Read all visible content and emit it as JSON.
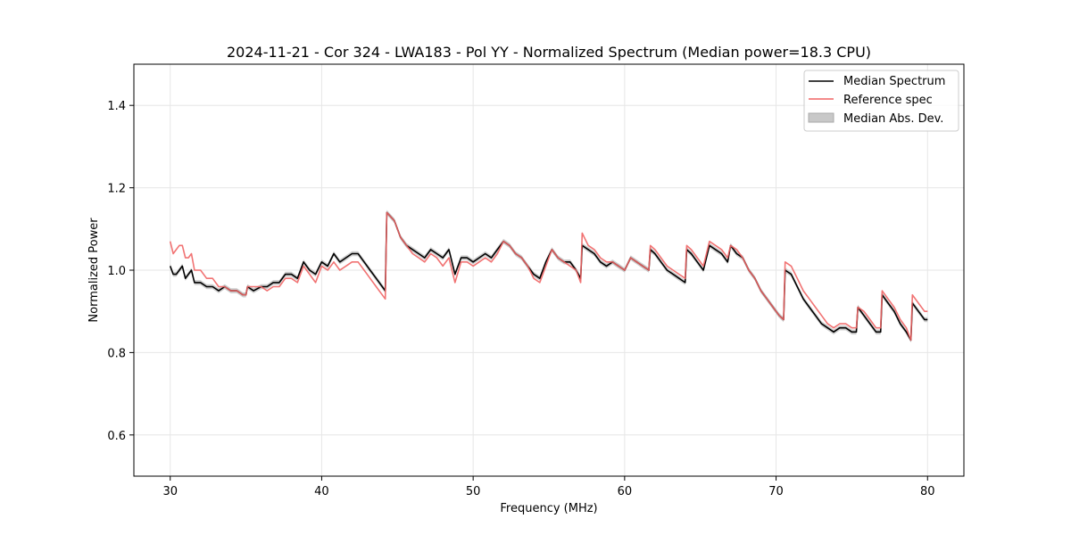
{
  "chart_data": {
    "type": "line",
    "title": "2024-11-21 - Cor 324 - LWA183 - Pol YY - Normalized Spectrum (Median power=18.3 CPU)",
    "xlabel": "Frequency (MHz)",
    "ylabel": "Normalized Power",
    "xlim": [
      27.6,
      82.4
    ],
    "ylim": [
      0.5,
      1.5
    ],
    "xticks": [
      30,
      40,
      50,
      60,
      70,
      80
    ],
    "yticks": [
      0.6,
      0.8,
      1.0,
      1.2,
      1.4
    ],
    "xtick_labels": [
      "30",
      "40",
      "50",
      "60",
      "70",
      "80"
    ],
    "ytick_labels": [
      "0.6",
      "0.8",
      "1.0",
      "1.2",
      "1.4"
    ],
    "grid": true,
    "legend_position": "top-right",
    "series": [
      {
        "name": "Median Spectrum",
        "color": "#000000",
        "x": [
          30.0,
          30.2,
          30.4,
          30.6,
          30.8,
          31.0,
          31.2,
          31.4,
          31.6,
          32.0,
          32.4,
          32.8,
          33.2,
          33.6,
          34.0,
          34.4,
          34.8,
          35.0,
          35.1,
          35.5,
          36.0,
          36.4,
          36.8,
          37.2,
          37.6,
          38.0,
          38.4,
          38.8,
          39.2,
          39.6,
          40.0,
          40.4,
          40.8,
          41.2,
          41.6,
          42.0,
          42.4,
          42.8,
          43.2,
          43.6,
          44.0,
          44.2,
          44.3,
          44.8,
          45.2,
          45.6,
          46.0,
          46.4,
          46.8,
          47.2,
          47.6,
          48.0,
          48.4,
          48.8,
          49.2,
          49.6,
          50.0,
          50.4,
          50.8,
          51.2,
          51.6,
          52.0,
          52.4,
          52.8,
          53.2,
          53.6,
          54.0,
          54.4,
          54.8,
          55.2,
          55.6,
          56.0,
          56.4,
          56.8,
          57.1,
          57.2,
          57.6,
          58.0,
          58.4,
          58.8,
          59.2,
          59.6,
          60.0,
          60.4,
          60.8,
          61.2,
          61.6,
          61.7,
          62.0,
          62.4,
          62.8,
          63.2,
          63.6,
          64.0,
          64.1,
          64.4,
          64.8,
          65.2,
          65.6,
          66.0,
          66.4,
          66.8,
          67.0,
          67.4,
          67.8,
          68.2,
          68.6,
          69.0,
          69.4,
          69.8,
          70.2,
          70.5,
          70.6,
          71.0,
          71.4,
          71.8,
          72.2,
          72.6,
          73.0,
          73.4,
          73.8,
          74.2,
          74.6,
          75.0,
          75.3,
          75.4,
          75.8,
          76.2,
          76.6,
          76.9,
          77.0,
          77.4,
          77.8,
          78.2,
          78.6,
          78.9,
          79.0,
          79.4,
          79.8,
          80.0
        ],
        "values": [
          1.01,
          0.99,
          0.99,
          1.0,
          1.01,
          0.98,
          0.99,
          1.0,
          0.97,
          0.97,
          0.96,
          0.96,
          0.95,
          0.96,
          0.95,
          0.95,
          0.94,
          0.94,
          0.96,
          0.95,
          0.96,
          0.96,
          0.97,
          0.97,
          0.99,
          0.99,
          0.98,
          1.02,
          1.0,
          0.99,
          1.02,
          1.01,
          1.04,
          1.02,
          1.03,
          1.04,
          1.04,
          1.02,
          1.0,
          0.98,
          0.96,
          0.95,
          1.14,
          1.12,
          1.08,
          1.06,
          1.05,
          1.04,
          1.03,
          1.05,
          1.04,
          1.03,
          1.05,
          0.99,
          1.03,
          1.03,
          1.02,
          1.03,
          1.04,
          1.03,
          1.05,
          1.07,
          1.06,
          1.04,
          1.03,
          1.01,
          0.99,
          0.98,
          1.02,
          1.05,
          1.03,
          1.02,
          1.02,
          1.0,
          0.98,
          1.06,
          1.05,
          1.04,
          1.02,
          1.01,
          1.02,
          1.01,
          1.0,
          1.03,
          1.02,
          1.01,
          1.0,
          1.05,
          1.04,
          1.02,
          1.0,
          0.99,
          0.98,
          0.97,
          1.05,
          1.04,
          1.02,
          1.0,
          1.06,
          1.05,
          1.04,
          1.02,
          1.06,
          1.04,
          1.03,
          1.0,
          0.98,
          0.95,
          0.93,
          0.91,
          0.89,
          0.88,
          1.0,
          0.99,
          0.96,
          0.93,
          0.91,
          0.89,
          0.87,
          0.86,
          0.85,
          0.86,
          0.86,
          0.85,
          0.85,
          0.91,
          0.89,
          0.87,
          0.85,
          0.85,
          0.94,
          0.92,
          0.9,
          0.87,
          0.85,
          0.83,
          0.92,
          0.9,
          0.88,
          0.88
        ]
      },
      {
        "name": "Reference spec",
        "color": "#f06464",
        "x": [
          30.0,
          30.2,
          30.4,
          30.6,
          30.8,
          31.0,
          31.2,
          31.4,
          31.6,
          32.0,
          32.4,
          32.8,
          33.2,
          33.6,
          34.0,
          34.4,
          34.8,
          35.0,
          35.1,
          35.5,
          36.0,
          36.4,
          36.8,
          37.2,
          37.6,
          38.0,
          38.4,
          38.8,
          39.2,
          39.6,
          40.0,
          40.4,
          40.8,
          41.2,
          41.6,
          42.0,
          42.4,
          42.8,
          43.2,
          43.6,
          44.0,
          44.2,
          44.3,
          44.8,
          45.2,
          45.6,
          46.0,
          46.4,
          46.8,
          47.2,
          47.6,
          48.0,
          48.4,
          48.8,
          49.2,
          49.6,
          50.0,
          50.4,
          50.8,
          51.2,
          51.6,
          52.0,
          52.4,
          52.8,
          53.2,
          53.6,
          54.0,
          54.4,
          54.8,
          55.2,
          55.6,
          56.0,
          56.4,
          56.8,
          57.1,
          57.2,
          57.6,
          58.0,
          58.4,
          58.8,
          59.2,
          59.6,
          60.0,
          60.4,
          60.8,
          61.2,
          61.6,
          61.7,
          62.0,
          62.4,
          62.8,
          63.2,
          63.6,
          64.0,
          64.1,
          64.4,
          64.8,
          65.2,
          65.6,
          66.0,
          66.4,
          66.8,
          67.0,
          67.4,
          67.8,
          68.2,
          68.6,
          69.0,
          69.4,
          69.8,
          70.2,
          70.5,
          70.6,
          71.0,
          71.4,
          71.8,
          72.2,
          72.6,
          73.0,
          73.4,
          73.8,
          74.2,
          74.6,
          75.0,
          75.3,
          75.4,
          75.8,
          76.2,
          76.6,
          76.9,
          77.0,
          77.4,
          77.8,
          78.2,
          78.6,
          78.9,
          79.0,
          79.4,
          79.8,
          80.0
        ],
        "values": [
          1.07,
          1.04,
          1.05,
          1.06,
          1.06,
          1.03,
          1.03,
          1.04,
          1.0,
          1.0,
          0.98,
          0.98,
          0.96,
          0.96,
          0.95,
          0.95,
          0.94,
          0.94,
          0.96,
          0.96,
          0.96,
          0.95,
          0.96,
          0.96,
          0.98,
          0.98,
          0.97,
          1.01,
          0.99,
          0.97,
          1.01,
          1.0,
          1.02,
          1.0,
          1.01,
          1.02,
          1.02,
          1.0,
          0.98,
          0.96,
          0.94,
          0.93,
          1.14,
          1.12,
          1.08,
          1.06,
          1.04,
          1.03,
          1.02,
          1.04,
          1.03,
          1.01,
          1.03,
          0.97,
          1.02,
          1.02,
          1.01,
          1.02,
          1.03,
          1.02,
          1.04,
          1.07,
          1.06,
          1.04,
          1.03,
          1.01,
          0.98,
          0.97,
          1.01,
          1.05,
          1.03,
          1.02,
          1.01,
          1.0,
          0.97,
          1.09,
          1.06,
          1.05,
          1.03,
          1.02,
          1.02,
          1.01,
          1.0,
          1.03,
          1.02,
          1.01,
          1.0,
          1.06,
          1.05,
          1.03,
          1.01,
          1.0,
          0.99,
          0.98,
          1.06,
          1.05,
          1.03,
          1.01,
          1.07,
          1.06,
          1.05,
          1.03,
          1.06,
          1.05,
          1.03,
          1.0,
          0.98,
          0.95,
          0.93,
          0.91,
          0.89,
          0.88,
          1.02,
          1.01,
          0.98,
          0.95,
          0.93,
          0.91,
          0.89,
          0.87,
          0.86,
          0.87,
          0.87,
          0.86,
          0.86,
          0.91,
          0.9,
          0.88,
          0.86,
          0.86,
          0.95,
          0.93,
          0.91,
          0.88,
          0.86,
          0.83,
          0.94,
          0.92,
          0.9,
          0.9
        ]
      },
      {
        "name": "Median Abs. Dev.",
        "color": "#c8c8c8",
        "type": "band",
        "half_width": 0.006
      }
    ]
  }
}
